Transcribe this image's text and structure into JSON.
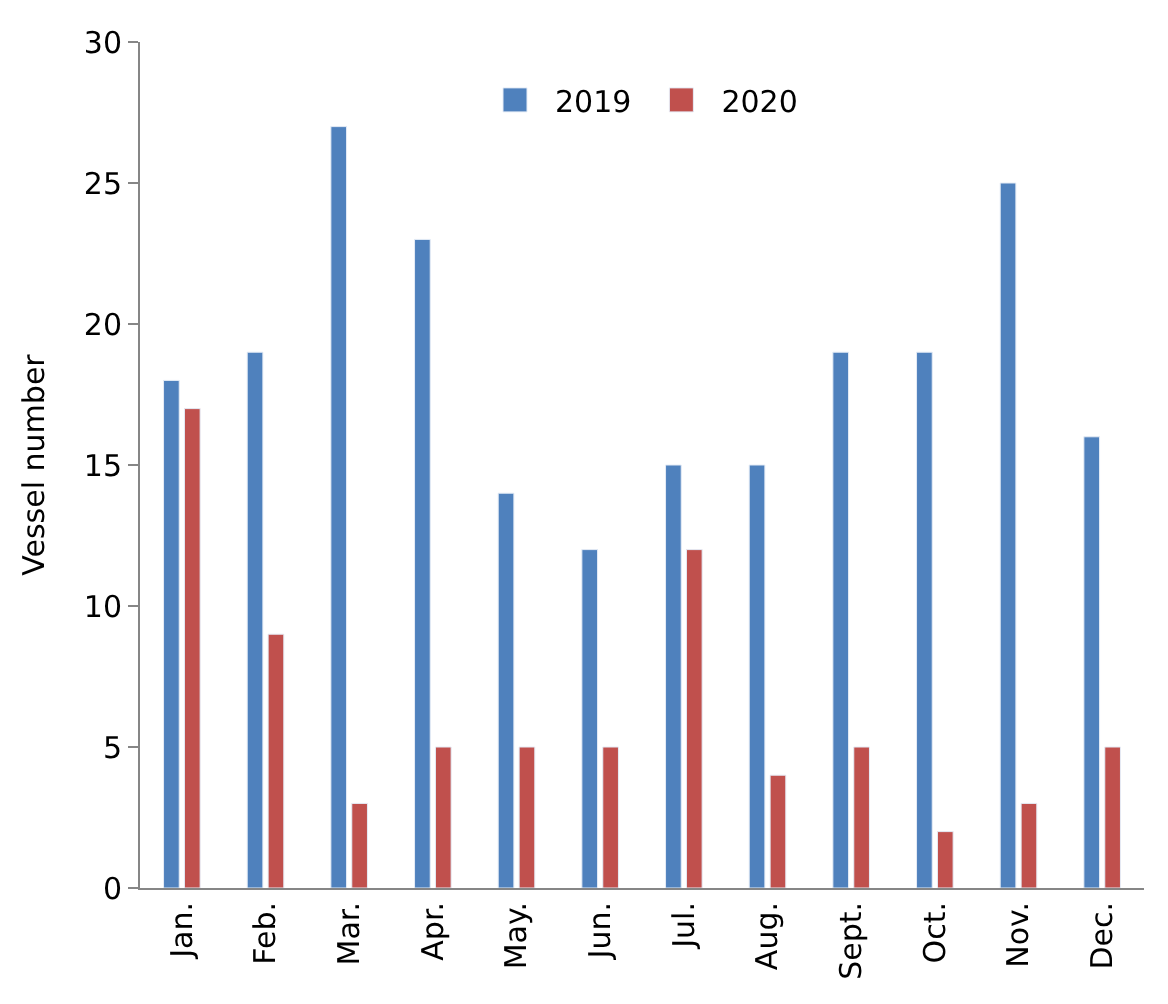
{
  "chart_data": {
    "type": "bar",
    "ylabel": "Vessel number",
    "categories": [
      "Jan.",
      "Feb.",
      "Mar.",
      "Apr.",
      "May.",
      "Jun.",
      "Jul.",
      "Aug.",
      "Sept.",
      "Oct.",
      "Nov.",
      "Dec."
    ],
    "series": [
      {
        "name": "2019",
        "color": "#4f81bd",
        "values": [
          18,
          19,
          27,
          23,
          14,
          12,
          15,
          15,
          19,
          19,
          25,
          16
        ]
      },
      {
        "name": "2020",
        "color": "#c0504d",
        "values": [
          17,
          9,
          3,
          5,
          5,
          5,
          12,
          4,
          5,
          2,
          3,
          5
        ]
      }
    ],
    "ylim": [
      0,
      30
    ],
    "yticks": [
      0,
      5,
      10,
      15,
      20,
      25,
      30
    ],
    "legend": "top"
  }
}
